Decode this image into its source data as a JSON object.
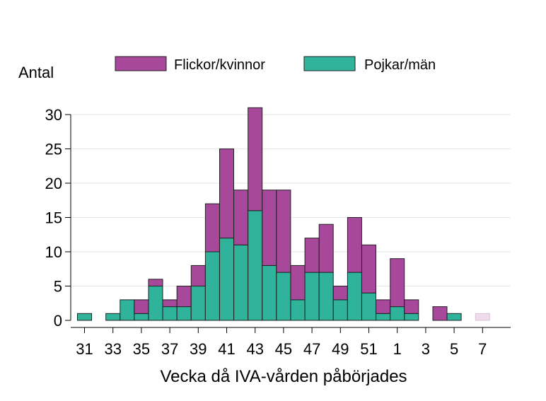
{
  "chart_data": {
    "type": "bar",
    "stacked": true,
    "ylabel": "Antal",
    "xlabel": "Vecka då IVA-vården påbörjades",
    "ylim": [
      0,
      31
    ],
    "yticks": [
      0,
      5,
      10,
      15,
      20,
      25,
      30
    ],
    "grid": true,
    "legend_position": "top",
    "categories": [
      "31",
      "32",
      "33",
      "34",
      "35",
      "36",
      "37",
      "38",
      "39",
      "40",
      "41",
      "42",
      "43",
      "44",
      "45",
      "46",
      "47",
      "48",
      "49",
      "50",
      "51",
      "52",
      "1",
      "2",
      "3",
      "4",
      "5",
      "6",
      "7"
    ],
    "xtick_labels": [
      "31",
      "33",
      "35",
      "37",
      "39",
      "41",
      "43",
      "45",
      "47",
      "49",
      "51",
      "1",
      "3",
      "5",
      "7"
    ],
    "series": [
      {
        "name": "Pojkar/män",
        "color": "#2fb39a",
        "values": [
          1,
          0,
          1,
          3,
          1,
          5,
          2,
          2,
          5,
          10,
          12,
          11,
          16,
          8,
          7,
          3,
          7,
          7,
          3,
          7,
          4,
          1,
          2,
          1,
          0,
          0,
          1,
          0,
          0
        ]
      },
      {
        "name": "Flickor/kvinnor",
        "color": "#a8489a",
        "values": [
          0,
          0,
          0,
          0,
          2,
          1,
          1,
          3,
          3,
          7,
          13,
          8,
          15,
          11,
          12,
          5,
          5,
          7,
          2,
          8,
          7,
          2,
          7,
          2,
          0,
          2,
          0,
          0,
          0
        ]
      }
    ],
    "incomplete": {
      "category": "7",
      "value": 1,
      "color": "#eedcec"
    }
  }
}
